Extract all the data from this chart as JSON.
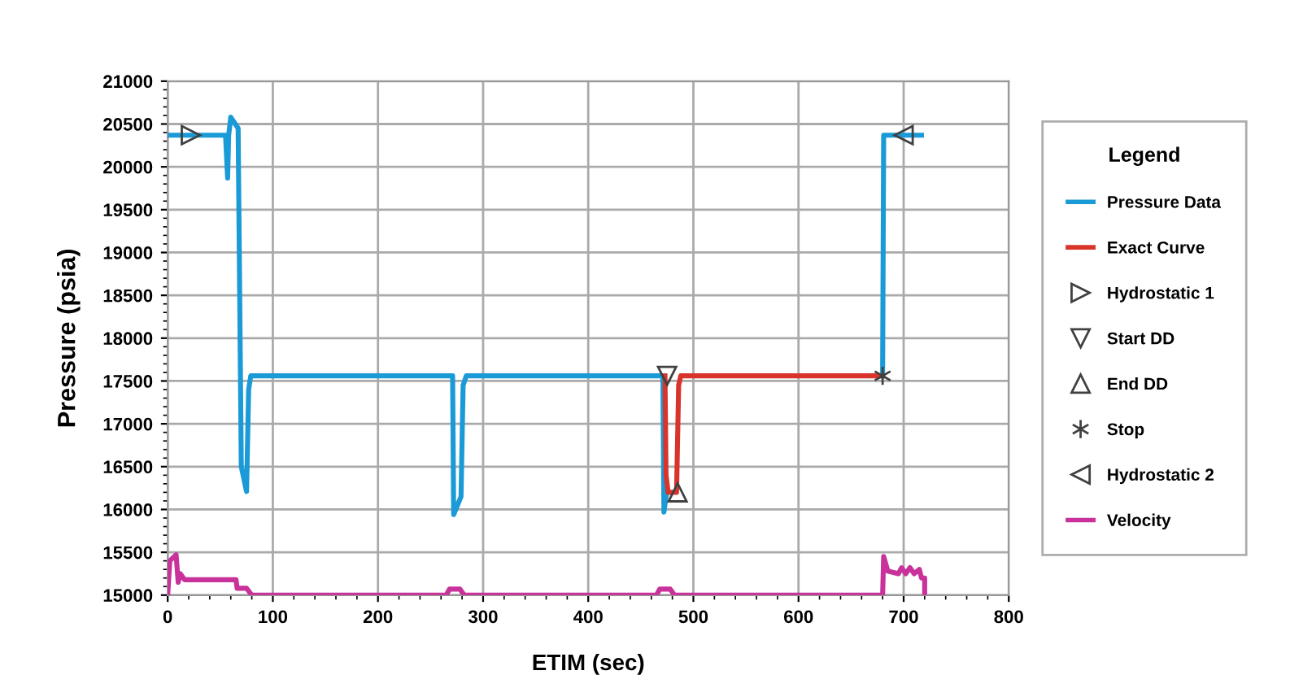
{
  "chart_data": {
    "type": "line",
    "xlabel": "ETIM (sec)",
    "ylabel": "Pressure (psia)",
    "legend_title": "Legend",
    "xlim": [
      0,
      800
    ],
    "xticks": [
      0,
      100,
      200,
      300,
      400,
      500,
      600,
      700,
      800
    ],
    "ylim": [
      15000,
      21000
    ],
    "yticks": [
      15000,
      15500,
      16000,
      16500,
      17000,
      17500,
      18000,
      18500,
      19000,
      19500,
      20000,
      20500,
      21000
    ],
    "grid": true,
    "legend": "right",
    "marker": "none",
    "line_style": "solid",
    "series": [
      {
        "name": "Pressure Data",
        "color": "#1a9ad6",
        "x": [
          0,
          55,
          57,
          58,
          60,
          67,
          70,
          75,
          77,
          79,
          271,
          272,
          279,
          281,
          284,
          471,
          472,
          474,
          475,
          577,
          680,
          681,
          717
        ],
        "values": [
          20370,
          20370,
          19870,
          20370,
          20580,
          20450,
          16500,
          16210,
          17400,
          17560,
          17560,
          15940,
          16150,
          17450,
          17560,
          17560,
          15970,
          16150,
          16200,
          null,
          17560,
          20370,
          20370
        ]
      },
      {
        "name": "Exact Curve",
        "color": "#d9342b",
        "x": [
          473,
          474,
          476,
          484,
          486,
          488,
          680
        ],
        "values": [
          17560,
          16400,
          16200,
          16200,
          17450,
          17560,
          17560
        ]
      },
      {
        "name": "Hydrostatic 1",
        "type": "scatter",
        "marker": "triangle-right",
        "color": "#404040",
        "x": [
          22
        ],
        "values": [
          20370
        ]
      },
      {
        "name": "Start DD",
        "type": "scatter",
        "marker": "triangle-down",
        "color": "#404040",
        "x": [
          475
        ],
        "values": [
          17560
        ]
      },
      {
        "name": "End DD",
        "type": "scatter",
        "marker": "triangle-up",
        "color": "#404040",
        "x": [
          485
        ],
        "values": [
          16200
        ]
      },
      {
        "name": "Stop",
        "type": "scatter",
        "marker": "cross",
        "color": "#404040",
        "x": [
          680
        ],
        "values": [
          17560
        ]
      },
      {
        "name": "Hydrostatic 2",
        "type": "scatter",
        "marker": "triangle-left",
        "color": "#404040",
        "x": [
          700
        ],
        "values": [
          20370
        ]
      },
      {
        "name": "Velocity",
        "color": "#c8329a",
        "x": [
          0,
          2,
          8,
          10,
          12,
          16,
          65,
          66,
          75,
          80,
          265,
          268,
          278,
          282,
          465,
          468,
          478,
          482,
          680,
          681,
          685,
          695,
          698,
          702,
          706,
          710,
          715,
          717,
          720,
          720
        ],
        "values": [
          15000,
          15400,
          15470,
          15150,
          15250,
          15180,
          15180,
          15080,
          15080,
          15000,
          15000,
          15070,
          15070,
          15000,
          15000,
          15070,
          15070,
          15000,
          15000,
          15450,
          15280,
          15250,
          15320,
          15250,
          15320,
          15250,
          15300,
          15200,
          15200,
          15000
        ]
      }
    ]
  }
}
